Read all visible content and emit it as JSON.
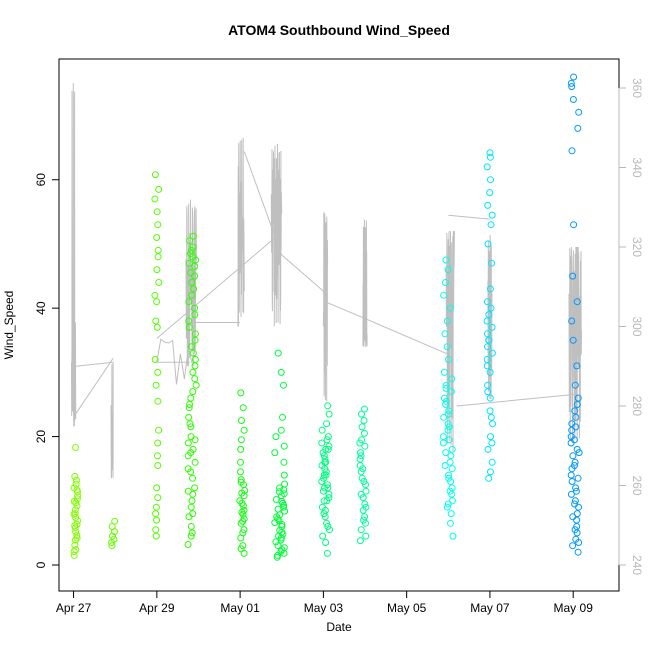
{
  "chart_data": {
    "type": "scatter",
    "title": "ATOM4 Southbound Wind_Speed",
    "xlabel": "Date",
    "ylabel": "Wind_Speed",
    "x_axis": {
      "min": -0.35,
      "max": 13.1,
      "ticks": [
        0,
        2,
        4,
        6,
        8,
        10,
        12
      ],
      "tick_labels": [
        "Apr 27",
        "Apr 29",
        "May 01",
        "May 03",
        "May 05",
        "May 07",
        "May 09"
      ]
    },
    "y_left": {
      "min": 0,
      "max": 76,
      "ticks": [
        0,
        20,
        40,
        60
      ],
      "tick_labels": [
        "0",
        "20",
        "40",
        "60"
      ]
    },
    "y_right": {
      "min": 238,
      "max": 364,
      "ticks": [
        240,
        260,
        280,
        300,
        320,
        340,
        360
      ],
      "tick_labels": [
        "240",
        "260",
        "280",
        "300",
        "320",
        "340",
        "360"
      ]
    },
    "point_clusters": [
      {
        "day": 0.05,
        "spread": 0.05,
        "values": [
          1.5,
          2.4,
          3.1,
          3.9,
          4.6,
          5.2,
          5.8,
          6.3,
          6.9,
          7.4,
          8,
          8.6,
          9.2,
          9.7,
          10.3,
          10.8,
          11.4,
          12,
          12.6,
          13.2,
          13.8,
          18.3,
          2.1,
          4.2,
          6.1,
          7.9,
          9.9,
          11.7
        ],
        "color": "#80ff00"
      },
      {
        "day": 0.95,
        "spread": 0.04,
        "values": [
          3,
          3.5,
          4,
          4.5,
          5.2,
          6,
          6.8
        ],
        "color": "#66ff00"
      },
      {
        "day": 2.0,
        "spread": 0.05,
        "values": [
          4.5,
          5.5,
          7,
          8,
          9,
          10.5,
          12,
          15.5,
          17,
          19,
          21,
          25.5,
          28,
          30,
          32,
          37,
          38,
          41,
          42,
          44,
          46,
          48,
          49,
          51,
          53,
          55,
          57,
          58.5,
          60.8
        ],
        "color": "#55ff00"
      },
      {
        "day": 2.85,
        "spread": 0.1,
        "values": [
          3.2,
          4.5,
          6,
          7.5,
          9,
          10,
          11,
          12,
          13.5,
          15,
          16,
          17,
          18,
          19,
          20,
          21.5,
          23,
          24.5,
          26,
          28,
          30,
          32,
          34,
          36,
          38,
          40,
          42,
          44,
          45.5,
          46.5,
          47.5,
          48.5,
          49.5,
          50.5,
          51.2,
          5,
          8,
          11.5,
          14.5,
          17.5,
          19.5,
          22,
          25,
          27,
          29,
          31,
          33,
          35,
          37,
          39,
          41,
          43,
          45,
          47,
          48,
          49
        ],
        "color": "#2eff00"
      },
      {
        "day": 4.05,
        "spread": 0.06,
        "values": [
          1.8,
          3,
          4.2,
          5.5,
          6.5,
          7.2,
          7.9,
          8.5,
          9.2,
          10,
          10.8,
          11.6,
          12.5,
          13.3,
          14.5,
          16,
          18,
          19.5,
          21,
          22.5,
          24.5,
          26.8,
          2.5,
          5,
          6.8,
          8.2,
          9.6,
          11.2,
          12.9
        ],
        "color": "#11ff11"
      },
      {
        "day": 4.95,
        "spread": 0.12,
        "values": [
          1.2,
          1.8,
          2.4,
          3,
          3.6,
          4.2,
          4.8,
          5.4,
          6,
          6.6,
          7.2,
          7.8,
          8.4,
          9,
          9.6,
          10.2,
          10.8,
          11.4,
          12,
          12.6,
          14,
          16,
          17.5,
          18.5,
          20,
          21,
          23,
          28,
          30,
          33,
          1.5,
          2.7,
          3.9,
          5.1,
          6.3,
          7.5,
          8.7,
          9.9,
          11.1,
          2.1,
          4.5,
          6.9,
          9.3,
          11.7
        ],
        "color": "#00ff3a"
      },
      {
        "day": 6.05,
        "spread": 0.1,
        "values": [
          1.8,
          3.5,
          4.5,
          5.5,
          6.5,
          7.5,
          8.5,
          9,
          10,
          10.5,
          11,
          11.5,
          12,
          12.5,
          13,
          13.5,
          14,
          14.5,
          15,
          15.5,
          16,
          16.5,
          17,
          17.5,
          18,
          18.5,
          19,
          19.5,
          20,
          21,
          22,
          23.5,
          24.8,
          6,
          8,
          10,
          12,
          14,
          16,
          18
        ],
        "color": "#00ff80"
      },
      {
        "day": 6.95,
        "spread": 0.08,
        "values": [
          3.8,
          4.5,
          5.5,
          6.5,
          7.5,
          8.5,
          9.5,
          10.5,
          11.5,
          12.5,
          13.5,
          14.5,
          15.5,
          16.5,
          17.5,
          18.5,
          19.5,
          20.5,
          21.5,
          22.5,
          23.5,
          24.3,
          7,
          9,
          11,
          13,
          15,
          17,
          19
        ],
        "color": "#00ff99"
      },
      {
        "day": 9.0,
        "spread": 0.12,
        "values": [
          4.5,
          6.5,
          8,
          9,
          10,
          11,
          12,
          13,
          14,
          15,
          16,
          17,
          18,
          19,
          20,
          21,
          22,
          23,
          24,
          25,
          26,
          27,
          28,
          29,
          30,
          32,
          34,
          36,
          38,
          40,
          42,
          44,
          46,
          47.5,
          9.5,
          11.5,
          13.5,
          15.5,
          17.5,
          19.5,
          21.5,
          23.5,
          25.5,
          27.5
        ],
        "color": "#00ffee"
      },
      {
        "day": 10.0,
        "spread": 0.07,
        "values": [
          13.5,
          14.5,
          16,
          18,
          20,
          22,
          24,
          26,
          28,
          30,
          32,
          33,
          34,
          35,
          36,
          37,
          38,
          39,
          40,
          41,
          43,
          47,
          50,
          53,
          54.5,
          56,
          58,
          60,
          62,
          63.5,
          64.2,
          19,
          23,
          27,
          31,
          35
        ],
        "color": "#00e5ff"
      },
      {
        "day": 12.05,
        "spread": 0.1,
        "values": [
          2,
          3,
          4,
          5,
          6,
          7,
          8,
          9,
          10,
          11,
          12,
          13,
          14,
          15,
          16,
          17,
          18,
          19,
          20,
          21,
          22,
          23,
          24,
          25,
          26,
          28,
          31,
          35,
          38,
          41,
          45,
          53,
          64.5,
          68,
          70.5,
          72.5,
          74.5,
          75,
          76,
          3.5,
          5.5,
          7.5,
          9.5,
          11.5,
          13.5,
          15.5,
          17.5,
          19.5,
          21.5
        ],
        "color": "#0099ff"
      }
    ],
    "direction_line": {
      "color": "#bfbfbf",
      "segments": [
        {
          "start": -0.05,
          "end": 0.05,
          "base": 285,
          "amp": 12,
          "min": 275,
          "max": 362,
          "n": 24
        },
        {
          "start": 0.9,
          "end": 0.95,
          "base": 270,
          "amp": 10,
          "min": 262,
          "max": 292,
          "n": 8
        },
        {
          "start": 2.0,
          "end": 2.85,
          "base": 292,
          "amp": 4,
          "min": 285,
          "max": 298,
          "n": 10
        },
        {
          "start": 2.7,
          "end": 2.95,
          "base": 308,
          "amp": 14,
          "min": 290,
          "max": 332,
          "n": 40
        },
        {
          "start": 3.95,
          "end": 4.1,
          "base": 318,
          "amp": 16,
          "min": 300,
          "max": 348,
          "n": 30
        },
        {
          "start": 4.75,
          "end": 5.0,
          "base": 325,
          "amp": 14,
          "min": 300,
          "max": 346,
          "n": 50
        },
        {
          "start": 6.0,
          "end": 6.1,
          "base": 306,
          "amp": 12,
          "min": 280,
          "max": 330,
          "n": 30
        },
        {
          "start": 6.95,
          "end": 7.05,
          "base": 306,
          "amp": 10,
          "min": 295,
          "max": 328,
          "n": 30
        },
        {
          "start": 8.95,
          "end": 9.15,
          "base": 300,
          "amp": 16,
          "min": 268,
          "max": 324,
          "n": 40
        },
        {
          "start": 9.95,
          "end": 10.05,
          "base": 305,
          "amp": 12,
          "min": 280,
          "max": 323,
          "n": 30
        },
        {
          "start": 11.9,
          "end": 12.2,
          "base": 300,
          "amp": 16,
          "min": 270,
          "max": 320,
          "n": 50
        }
      ],
      "links": [
        [
          [
            0.05,
            278
          ],
          [
            0.95,
            292
          ]
        ],
        [
          [
            0.95,
            266
          ],
          [
            0.95,
            291
          ]
        ],
        [
          [
            0.05,
            290
          ],
          [
            0.95,
            291
          ]
        ],
        [
          [
            2.0,
            291
          ],
          [
            2.8,
            291
          ]
        ],
        [
          [
            2.8,
            301
          ],
          [
            4.0,
            301
          ]
        ],
        [
          [
            2.0,
            297
          ],
          [
            4.8,
            322
          ]
        ],
        [
          [
            4.1,
            344
          ],
          [
            5.0,
            318
          ]
        ],
        [
          [
            5.0,
            318
          ],
          [
            6.1,
            308
          ]
        ],
        [
          [
            6.1,
            306
          ],
          [
            7.0,
            302
          ]
        ],
        [
          [
            7.0,
            302
          ],
          [
            9.0,
            293
          ]
        ],
        [
          [
            9.0,
            328
          ],
          [
            10.0,
            327
          ]
        ],
        [
          [
            9.0,
            322
          ],
          [
            9.0,
            280
          ]
        ],
        [
          [
            9.2,
            280
          ],
          [
            12.1,
            283
          ]
        ]
      ]
    }
  }
}
